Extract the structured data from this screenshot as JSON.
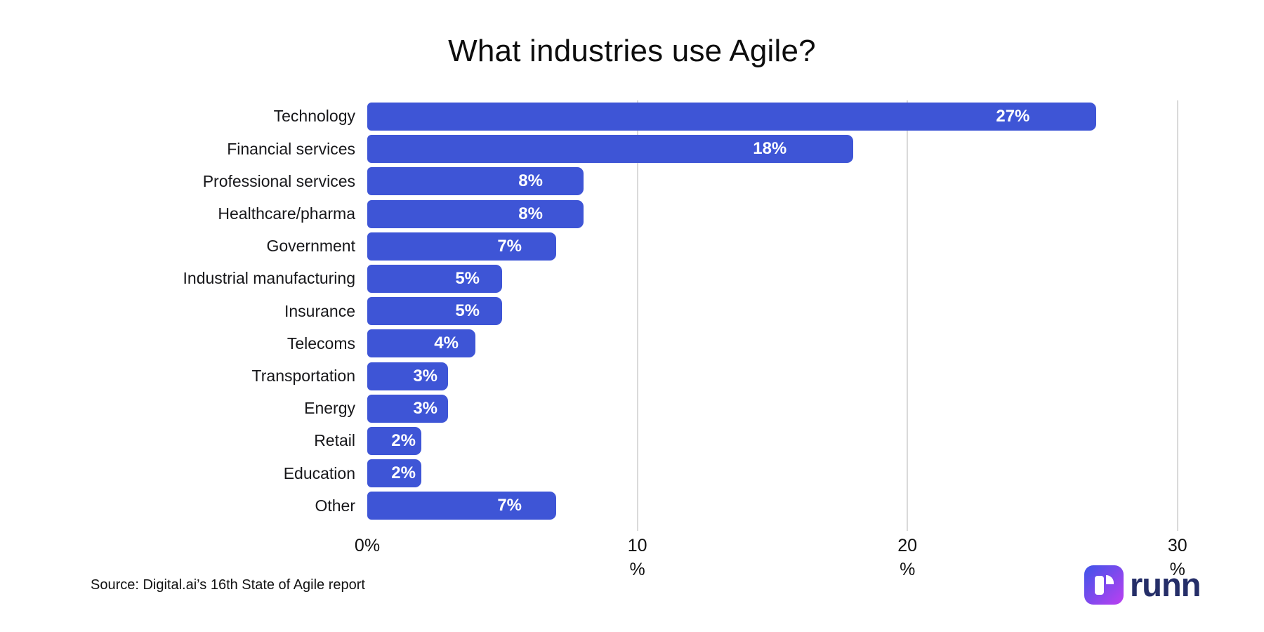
{
  "title": "What industries use Agile?",
  "chart_data": {
    "type": "bar",
    "orientation": "horizontal",
    "title": "What industries use Agile?",
    "categories": [
      "Technology",
      "Financial services",
      "Professional services",
      "Healthcare/pharma",
      "Government",
      "Industrial manufacturing",
      "Insurance",
      "Telecoms",
      "Transportation",
      "Energy",
      "Retail",
      "Education",
      "Other"
    ],
    "values": [
      27,
      18,
      8,
      8,
      7,
      5,
      5,
      4,
      3,
      3,
      2,
      2,
      7
    ],
    "value_labels": [
      "27%",
      "18%",
      "8%",
      "8%",
      "7%",
      "5%",
      "5%",
      "4%",
      "3%",
      "3%",
      "2%",
      "2%",
      "7%"
    ],
    "xlim": [
      0,
      30
    ],
    "x_tick_values": [
      0,
      10,
      20,
      30
    ],
    "x_tick_labels": [
      {
        "line1": "0%",
        "line2": ""
      },
      {
        "line1": "10",
        "line2": "%"
      },
      {
        "line1": "20",
        "line2": "%"
      },
      {
        "line1": "30",
        "line2": "%"
      }
    ],
    "grid": "vertical-lines-at-10-20-30",
    "legend": "none"
  },
  "colors": {
    "bar": "#3E55D6",
    "gridline": "#DADADA",
    "value_label": "#FFFFFF",
    "logo_text": "#252E68",
    "logo_gradient_start": "#3E55E9",
    "logo_gradient_end": "#BC3FF1"
  },
  "footer": {
    "source": "Source: Digital.ai’s 16th State of Agile report",
    "logo_text": "runn"
  },
  "icons": {
    "logo_mark": "runn-logo-icon"
  }
}
